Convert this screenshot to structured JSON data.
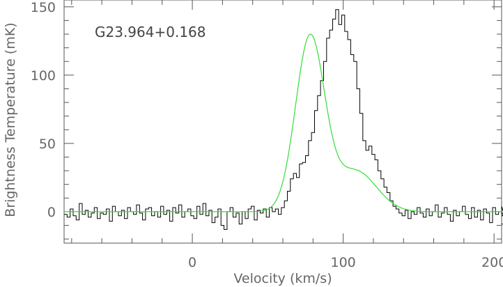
{
  "chart_data": {
    "type": "line",
    "title": "",
    "annotation": "G23.964+0.168",
    "xlabel": "Velocity (km/s)",
    "ylabel": "Brightness Temperature (mK)",
    "xlim": [
      -85,
      205
    ],
    "ylim": [
      -23,
      155
    ],
    "x_ticks": [
      0,
      100,
      200
    ],
    "y_ticks": [
      0,
      50,
      100,
      150
    ],
    "colors": {
      "spectrum": "#000000",
      "fit": "#33dd33",
      "frame": "#555555"
    },
    "series": [
      {
        "style": "step",
        "x_start": -85,
        "x_step": 2,
        "values": [
          -2,
          -4,
          2,
          -3,
          -6,
          6,
          -2,
          1,
          -4,
          -1,
          3,
          -5,
          -1,
          -2,
          2,
          -7,
          4,
          0,
          -3,
          1,
          -5,
          3,
          0,
          -2,
          5,
          -1,
          -6,
          2,
          3,
          -3,
          0,
          -4,
          4,
          -2,
          1,
          -7,
          3,
          -1,
          5,
          -4,
          0,
          2,
          -3,
          -5,
          4,
          -2,
          6,
          -3,
          1,
          -8,
          -4,
          2,
          -10,
          -13,
          0,
          3,
          -4,
          -1,
          -9,
          0,
          -5,
          2,
          4,
          -6,
          1,
          -1,
          2,
          -4,
          3,
          0,
          2,
          -2,
          3,
          8,
          15,
          24,
          28,
          25,
          35,
          36,
          41,
          52,
          58,
          74,
          85,
          96,
          110,
          127,
          133,
          141,
          148,
          137,
          144,
          132,
          126,
          115,
          110,
          90,
          72,
          52,
          45,
          48,
          42,
          38,
          30,
          24,
          18,
          14,
          8,
          4,
          2,
          -1,
          -3,
          1,
          -5,
          0,
          -2,
          3,
          -1,
          -4,
          2,
          -3,
          0,
          5,
          -4,
          -1,
          3,
          -2,
          -7,
          1,
          -3,
          0,
          4,
          -2,
          -5,
          3,
          -4,
          1,
          -6,
          2,
          -1,
          -8,
          3,
          -2,
          0,
          4,
          -3,
          -1,
          -9
        ]
      },
      {
        "style": "smooth",
        "x_start": -85,
        "x_step": 1,
        "model": "gaussians",
        "components": [
          {
            "amp": 127,
            "center": 78,
            "sigma": 9.6
          },
          {
            "amp": 30,
            "center": 108,
            "sigma": 14
          }
        ]
      }
    ],
    "legend": "none",
    "grid": false
  }
}
